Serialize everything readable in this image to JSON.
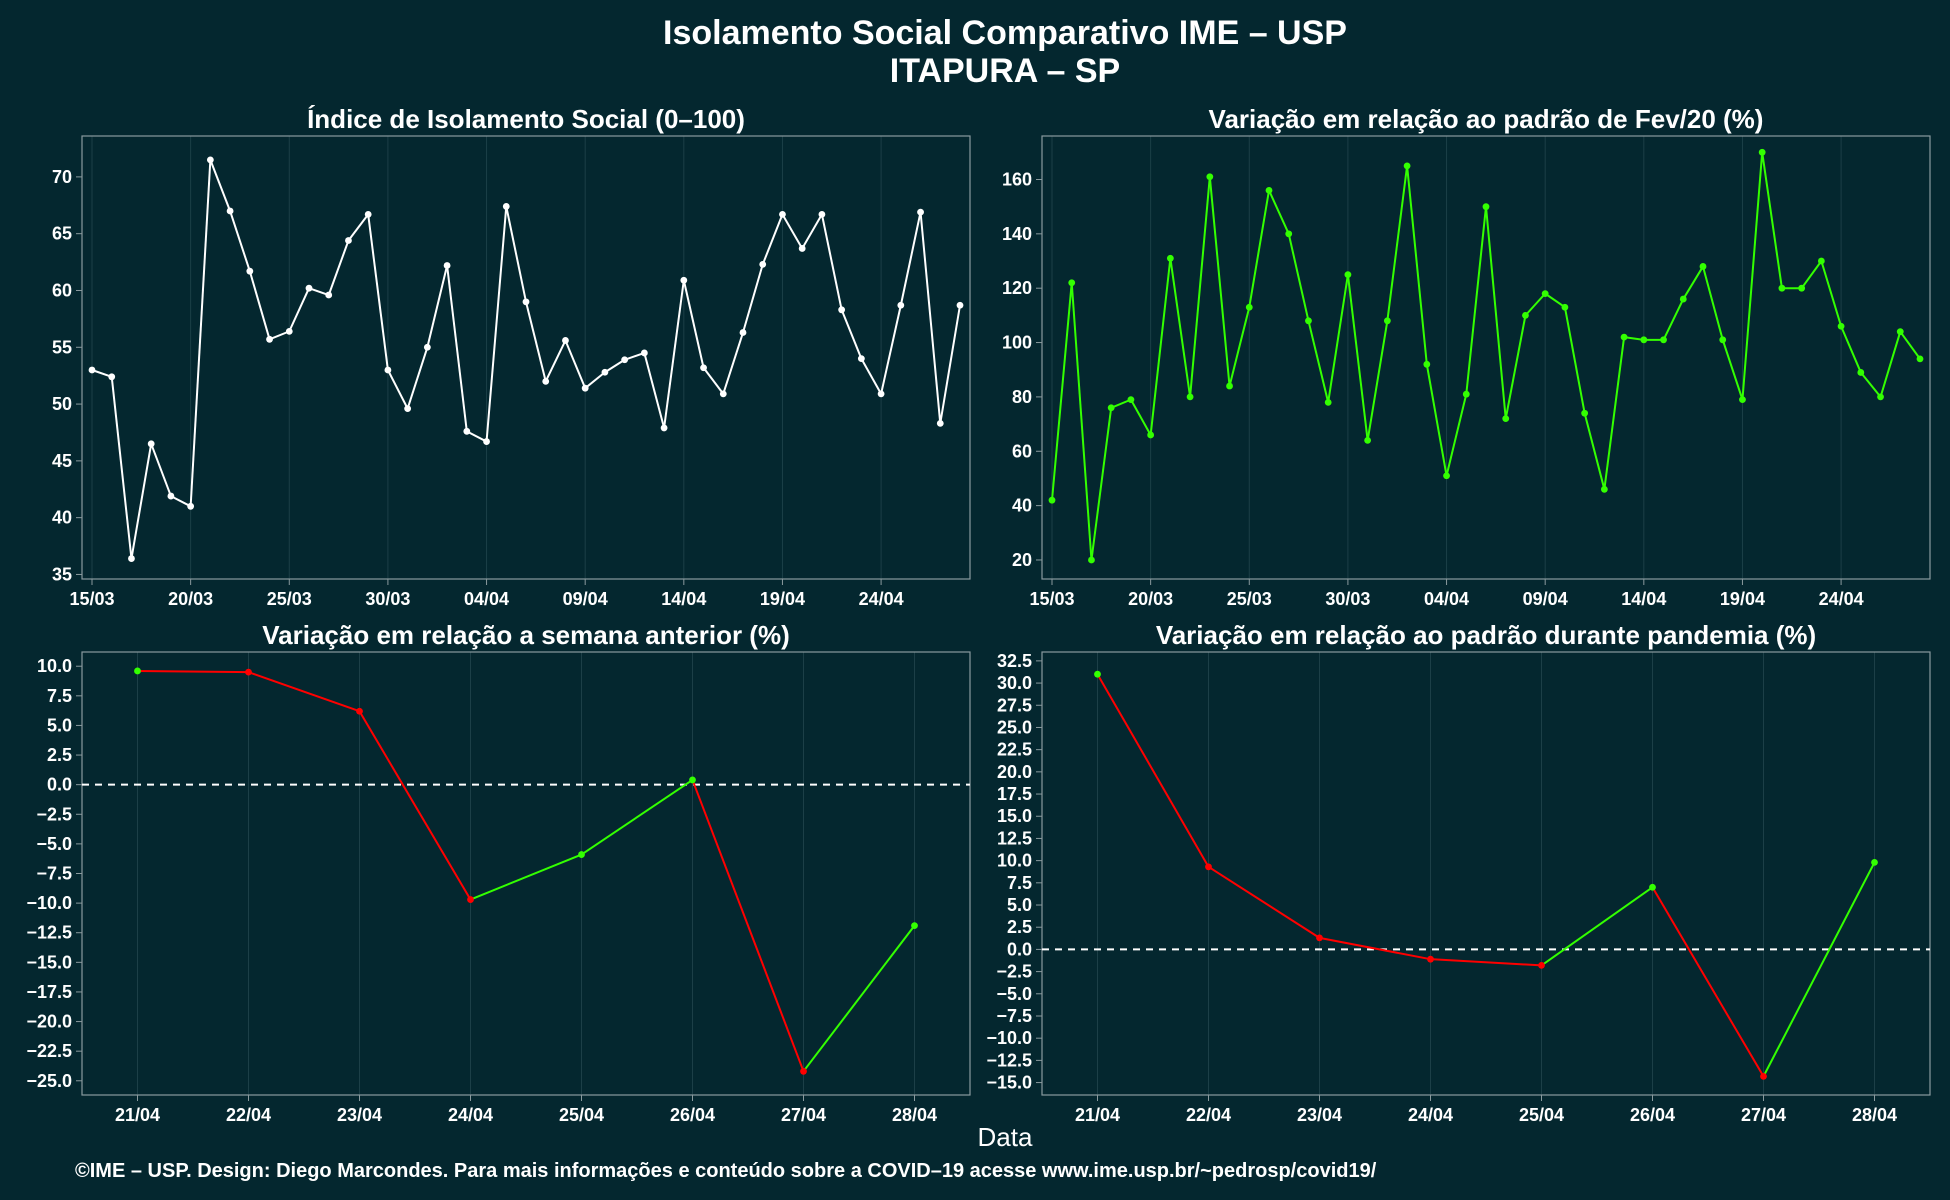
{
  "title_line1": "Isolamento Social Comparativo IME – USP",
  "title_line2": "ITAPURA – SP",
  "xlabel": "Data",
  "footer": "©IME – USP. Design: Diego Marcondes. Para mais informações e conteúdo sobre a COVID–19 acesse www.ime.usp.br/~pedrosp/covid19/",
  "colors": {
    "background": "#04272f",
    "grid": "#1c3f47",
    "frame": "#8a9a9e",
    "white_series": "#ffffff",
    "green": "#33ff00",
    "red": "#ff0000"
  },
  "chart_data": [
    {
      "type": "line",
      "title": "Índice de Isolamento Social (0–100)",
      "x_tick_labels": [
        "15/03",
        "20/03",
        "25/03",
        "30/03",
        "04/04",
        "09/04",
        "14/04",
        "19/04",
        "24/04"
      ],
      "x_tick_index": [
        0,
        5,
        10,
        15,
        20,
        25,
        30,
        35,
        40
      ],
      "y_ticks": [
        35,
        40,
        45,
        50,
        55,
        60,
        65,
        70
      ],
      "ylim": [
        34.6,
        73.6
      ],
      "series": [
        {
          "color": "white",
          "values": [
            53.0,
            52.4,
            36.4,
            46.5,
            41.9,
            41.0,
            71.5,
            67.0,
            61.7,
            55.7,
            56.4,
            60.2,
            59.6,
            64.4,
            66.7,
            53.0,
            49.6,
            55.0,
            62.2,
            47.6,
            46.7,
            67.4,
            59.0,
            52.0,
            55.6,
            51.4,
            52.8,
            53.9,
            54.5,
            47.9,
            60.9,
            53.2,
            50.9,
            56.3,
            62.3,
            66.7,
            63.7,
            66.7,
            58.3,
            54.0,
            50.9,
            58.7,
            66.9,
            48.3,
            58.7
          ]
        }
      ]
    },
    {
      "type": "line",
      "title": "Variação em relação ao padrão de Fev/20 (%)",
      "x_tick_labels": [
        "15/03",
        "20/03",
        "25/03",
        "30/03",
        "04/04",
        "09/04",
        "14/04",
        "19/04",
        "24/04"
      ],
      "x_tick_index": [
        0,
        5,
        10,
        15,
        20,
        25,
        30,
        35,
        40
      ],
      "y_ticks": [
        20,
        40,
        60,
        80,
        100,
        120,
        140,
        160
      ],
      "ylim": [
        13,
        176
      ],
      "series": [
        {
          "color": "green",
          "values": [
            42,
            122,
            20,
            76,
            79,
            66,
            131,
            80,
            161,
            84,
            113,
            156,
            140,
            108,
            78,
            125,
            64,
            108,
            165,
            92,
            51,
            81,
            150,
            72,
            110,
            118,
            113,
            74,
            46,
            102,
            101,
            101,
            116,
            128,
            101,
            79,
            170,
            120,
            120,
            130,
            106,
            89,
            80,
            104,
            94
          ]
        }
      ]
    },
    {
      "type": "line",
      "title": "Variação em relação a semana anterior (%)",
      "categories": [
        "21/04",
        "22/04",
        "23/04",
        "24/04",
        "25/04",
        "26/04",
        "27/04",
        "28/04"
      ],
      "y_ticks": [
        10.0,
        7.5,
        5.0,
        2.5,
        0.0,
        -2.5,
        -5.0,
        -7.5,
        -10.0,
        -12.5,
        -15.0,
        -17.5,
        -20.0,
        -22.5,
        -25.0
      ],
      "ylim": [
        -26.2,
        11.2
      ],
      "reference_line": 0,
      "series": [
        {
          "color": "green-up / red-down",
          "values": [
            9.6,
            9.5,
            6.2,
            -9.7,
            -5.9,
            0.4,
            -24.2,
            -11.9
          ]
        }
      ]
    },
    {
      "type": "line",
      "title": "Variação em relação ao padrão durante pandemia (%)",
      "categories": [
        "21/04",
        "22/04",
        "23/04",
        "24/04",
        "25/04",
        "26/04",
        "27/04",
        "28/04"
      ],
      "y_ticks": [
        32.5,
        30.0,
        27.5,
        25.0,
        22.5,
        20.0,
        17.5,
        15.0,
        12.5,
        10.0,
        7.5,
        5.0,
        2.5,
        0.0,
        -2.5,
        -5.0,
        -7.5,
        -10.0,
        -12.5,
        -15.0
      ],
      "ylim": [
        -16.4,
        33.5
      ],
      "reference_line": 0,
      "series": [
        {
          "color": "green-up / red-down",
          "values": [
            31.0,
            9.3,
            1.3,
            -1.1,
            -1.8,
            7.0,
            -14.3,
            9.8
          ]
        }
      ]
    }
  ]
}
